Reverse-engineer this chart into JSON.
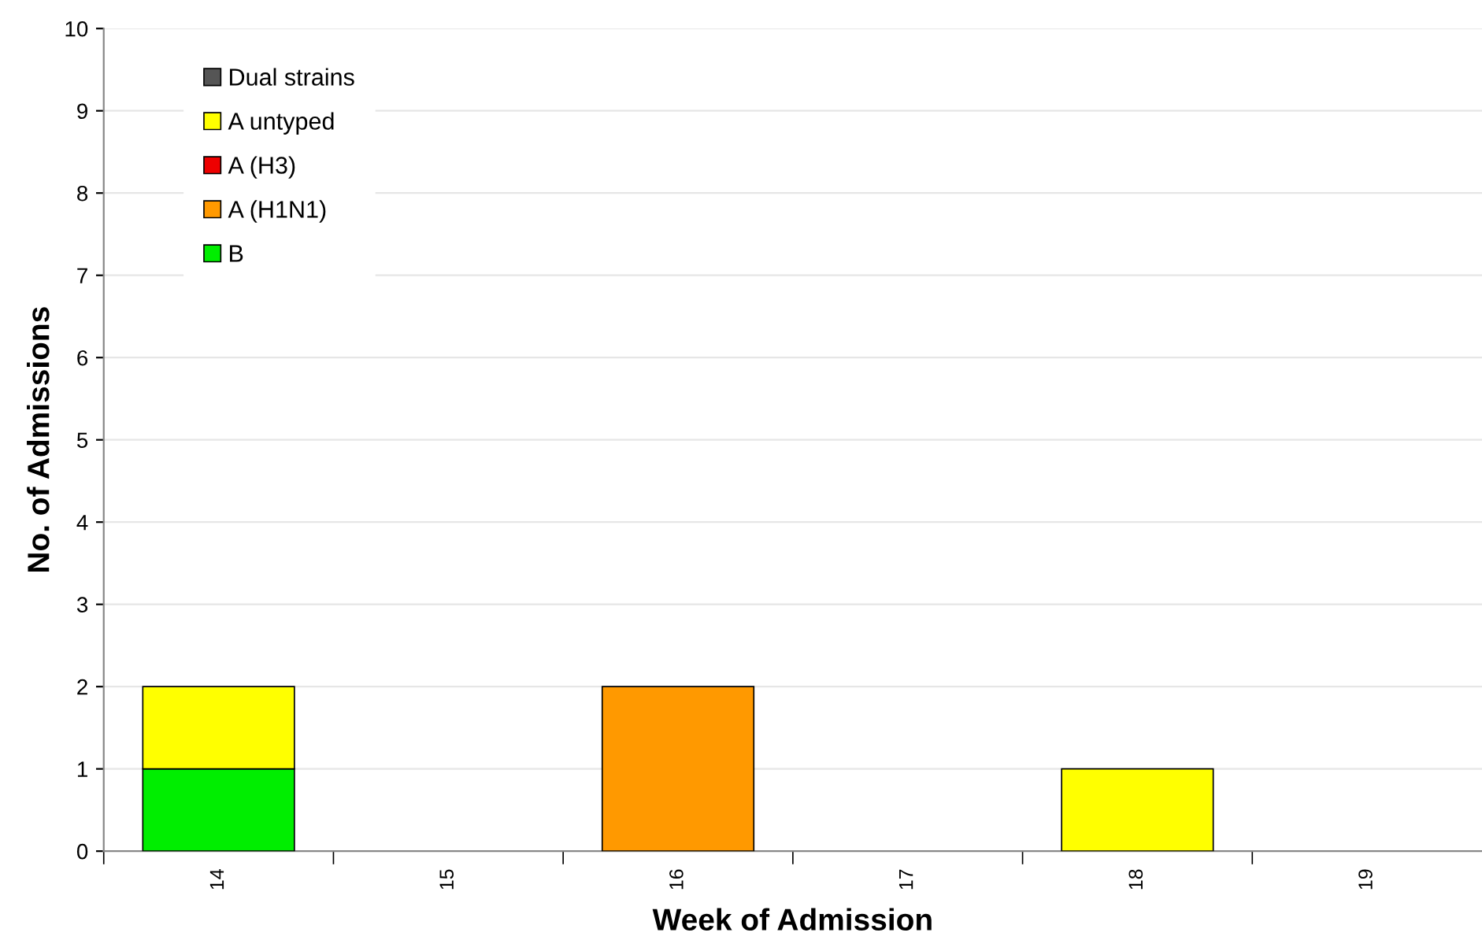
{
  "chart_data": {
    "type": "bar",
    "stacked": true,
    "xlabel": "Week of Admission",
    "ylabel": "No. of Admissions",
    "categories": [
      "14",
      "15",
      "16",
      "17",
      "18",
      "19"
    ],
    "series": [
      {
        "name": "B",
        "color": "#00ee00",
        "values": [
          1,
          0,
          0,
          0,
          0,
          0
        ]
      },
      {
        "name": "A (H1N1)",
        "color": "#ff9900",
        "values": [
          0,
          0,
          2,
          0,
          0,
          0
        ]
      },
      {
        "name": "A (H3)",
        "color": "#ee0000",
        "values": [
          0,
          0,
          0,
          0,
          0,
          0
        ]
      },
      {
        "name": "A untyped",
        "color": "#ffff00",
        "values": [
          1,
          0,
          0,
          0,
          1,
          0
        ]
      },
      {
        "name": "Dual strains",
        "color": "#555555",
        "values": [
          0,
          0,
          0,
          0,
          0,
          0
        ]
      }
    ],
    "ylim": [
      0,
      10
    ],
    "yticks": [
      0,
      1,
      2,
      3,
      4,
      5,
      6,
      7,
      8,
      9,
      10
    ],
    "grid": "y",
    "legend": "top left"
  }
}
